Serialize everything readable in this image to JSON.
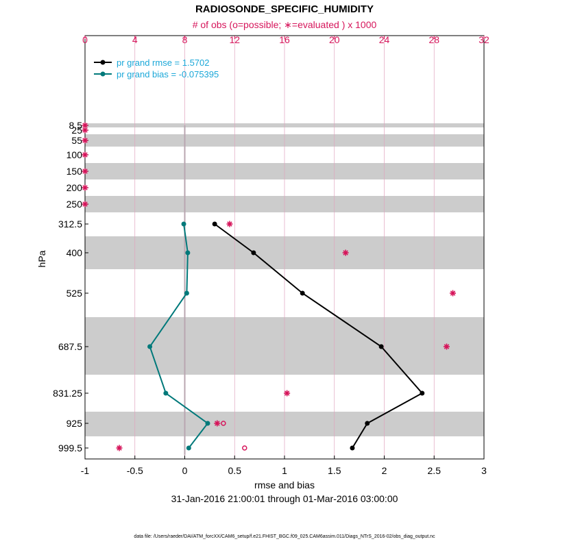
{
  "chart_data": {
    "type": "line",
    "title": "RADIOSONDE_SPECIFIC_HUMIDITY",
    "top_axis_label": "# of obs (o=possible; ∗=evaluated ) x 1000",
    "xlabel": "rmse and bias",
    "ylabel": "hPa",
    "date_range": "31-Jan-2016 21:00:01 through 01-Mar-2016 03:00:00",
    "footnote": "data file: /Users/raeder/DAI/ATM_forcXX/CAM6_setup/f.e21.FHIST_BGC.f09_025.CAM6assim.011/Diags_NTrS_2016-02/obs_diag_output.nc",
    "xlim": [
      -1,
      3
    ],
    "xticks": [
      "-1",
      "-0.5",
      "0",
      "0.5",
      "1",
      "1.5",
      "2",
      "2.5",
      "3"
    ],
    "top_xlim": [
      0,
      32
    ],
    "top_xticks": [
      "0",
      "4",
      "8",
      "12",
      "16",
      "20",
      "24",
      "28",
      "32"
    ],
    "levels": [
      8.5,
      25,
      55,
      100,
      150,
      200,
      250,
      312.5,
      400,
      525,
      687.5,
      831.25,
      925,
      999.5
    ],
    "level_labels": [
      "8.5",
      "25",
      "55",
      "100",
      "150",
      "200",
      "250",
      "312.5",
      "400",
      "525",
      "687.5",
      "831.25",
      "925",
      "999.5"
    ],
    "series": [
      {
        "name": "pr grand rmse = 1.5702",
        "color": "#000000",
        "levels": [
          312.5,
          400,
          525,
          687.5,
          831.25,
          925,
          999.5
        ],
        "values": [
          0.3,
          0.69,
          1.18,
          1.97,
          2.38,
          1.83,
          1.68
        ]
      },
      {
        "name": "pr grand bias = -0.075395",
        "color": "#00797a",
        "levels": [
          312.5,
          400,
          525,
          687.5,
          831.25,
          925,
          999.5
        ],
        "values": [
          -0.01,
          0.03,
          0.02,
          -0.35,
          -0.19,
          0.23,
          0.04
        ]
      }
    ],
    "obs_counts": {
      "color": "#d6145a",
      "evaluated": [
        {
          "level": 8.5,
          "count": 0
        },
        {
          "level": 25,
          "count": 0
        },
        {
          "level": 55,
          "count": 0
        },
        {
          "level": 100,
          "count": 0
        },
        {
          "level": 150,
          "count": 0
        },
        {
          "level": 200,
          "count": 0
        },
        {
          "level": 250,
          "count": 0
        },
        {
          "level": 312.5,
          "count": 11.6
        },
        {
          "level": 400,
          "count": 20.9
        },
        {
          "level": 525,
          "count": 29.5
        },
        {
          "level": 687.5,
          "count": 29.0
        },
        {
          "level": 831.25,
          "count": 16.2
        },
        {
          "level": 925,
          "count": 10.6
        },
        {
          "level": 999.5,
          "count": 2.75
        }
      ],
      "possible": [
        {
          "level": 925,
          "count": 11.1
        },
        {
          "level": 999.5,
          "count": 12.8
        }
      ]
    }
  }
}
